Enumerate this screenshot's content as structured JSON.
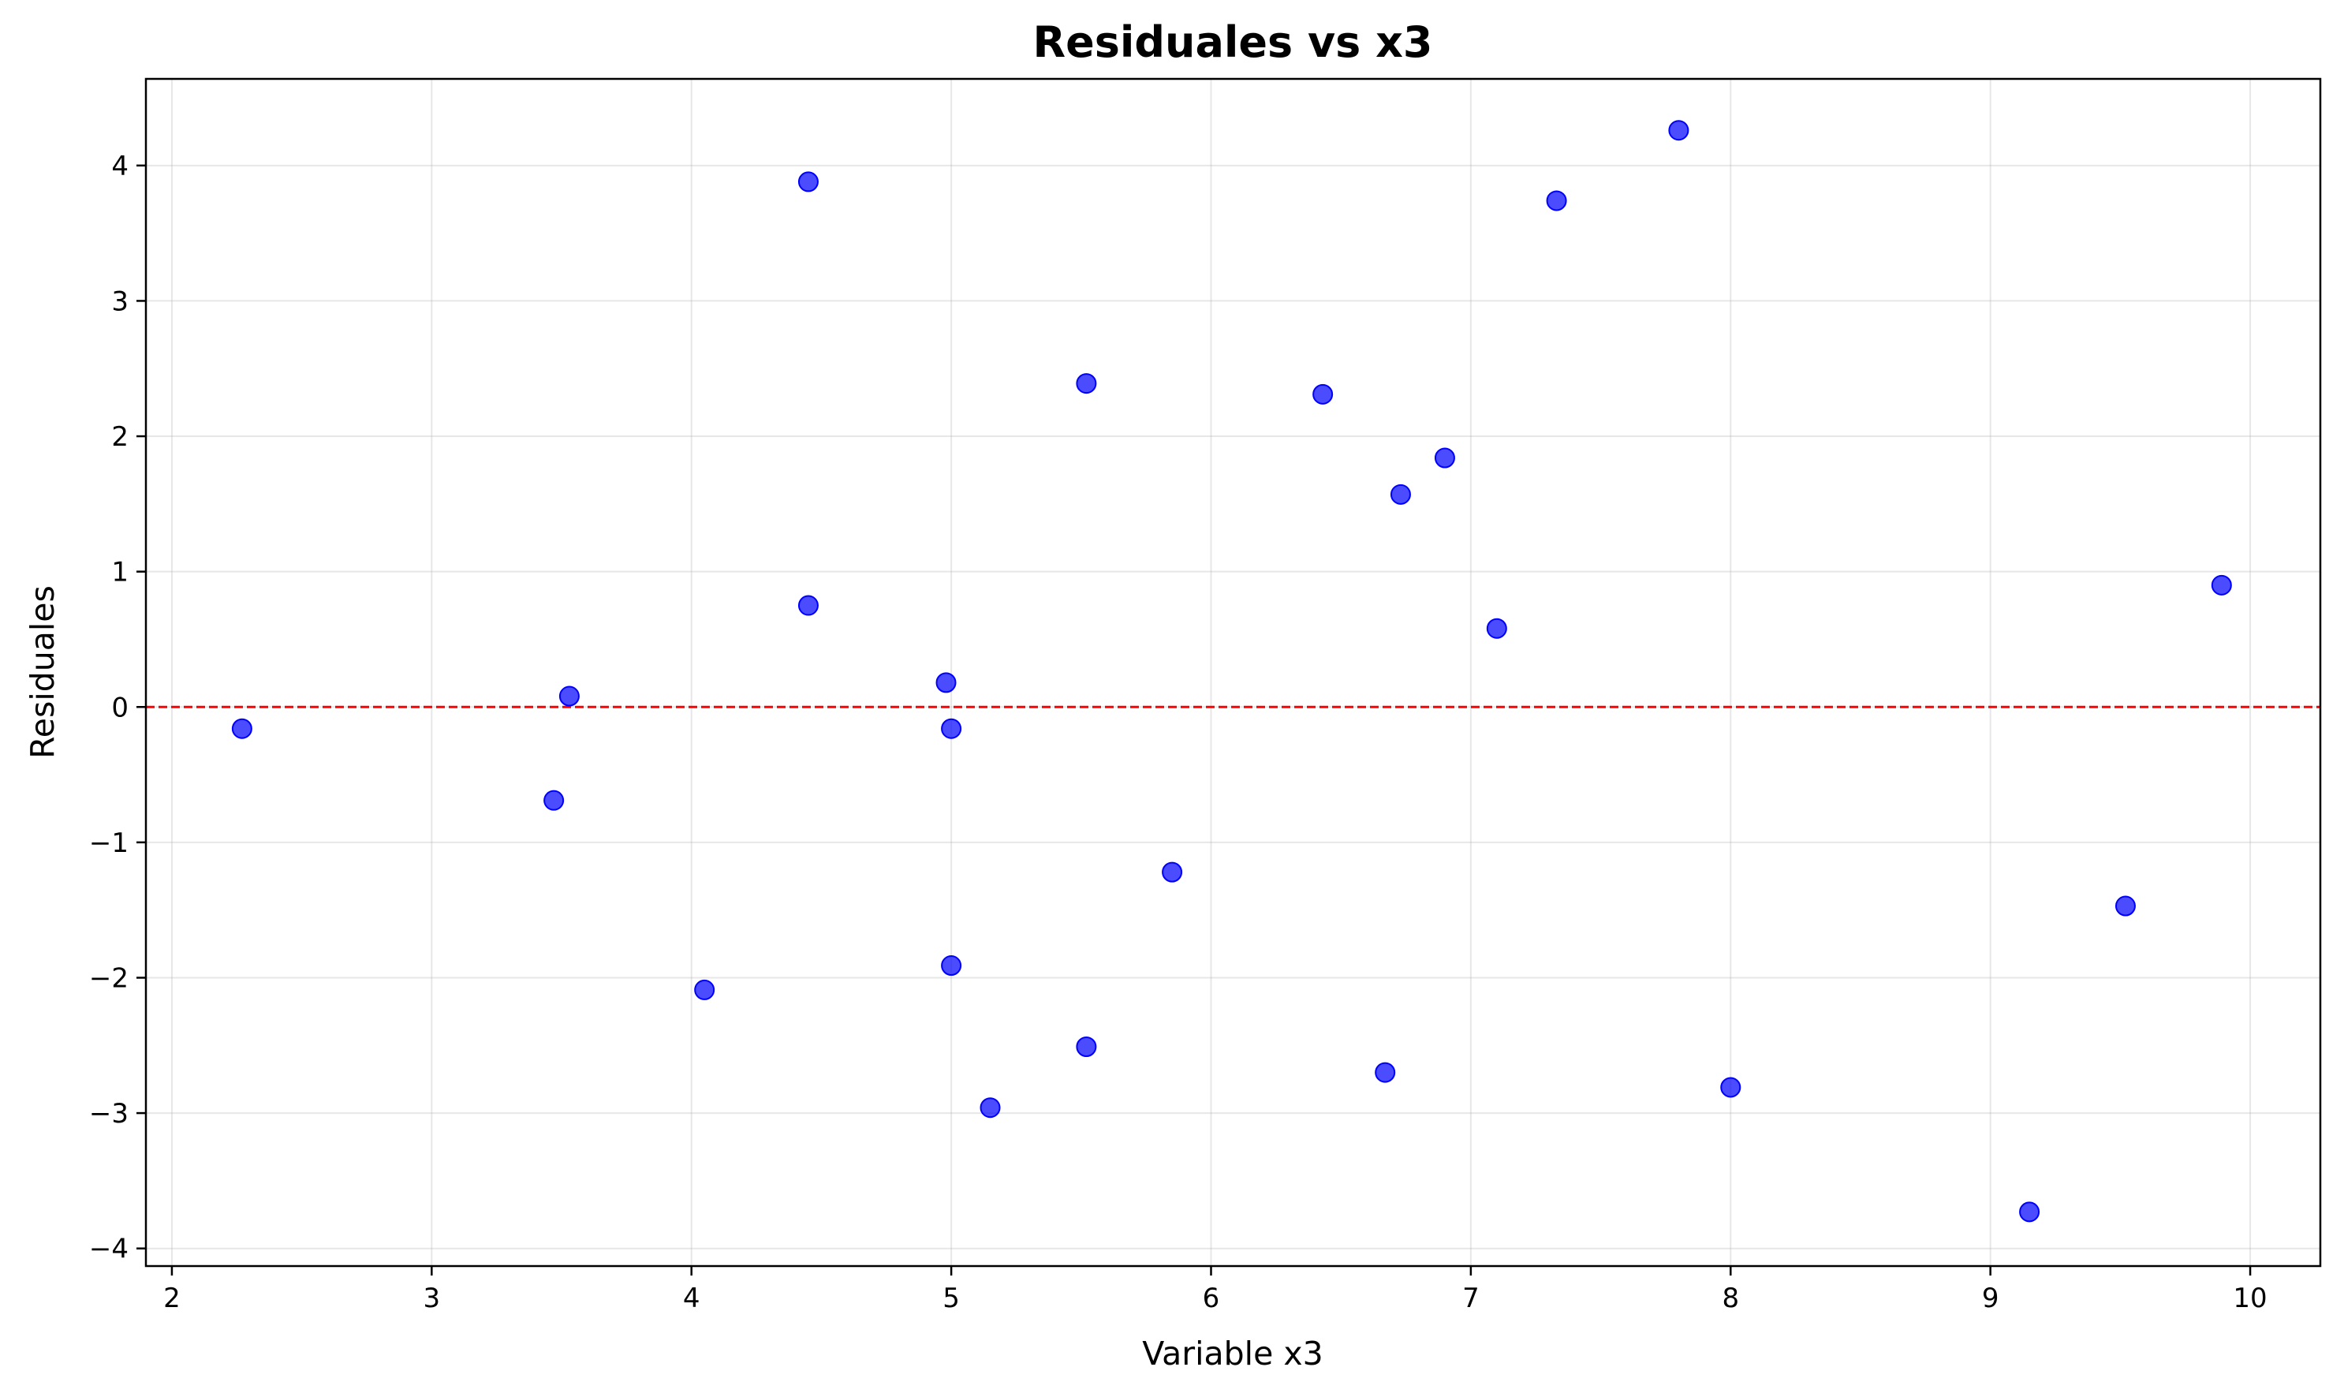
{
  "chart_data": {
    "type": "scatter",
    "title": "Residuales vs x3",
    "xlabel": "Variable x3",
    "ylabel": "Residuales",
    "xlim": [
      1.9,
      10.27
    ],
    "ylim": [
      -4.13,
      4.64
    ],
    "xticks": [
      2,
      3,
      4,
      5,
      6,
      7,
      8,
      9,
      10
    ],
    "yticks": [
      -4,
      -3,
      -2,
      -1,
      0,
      1,
      2,
      3,
      4
    ],
    "grid": true,
    "point_color": "#0000ff",
    "reference_line": {
      "y": 0,
      "color": "#ff0000",
      "style": "dashed"
    },
    "points": [
      {
        "x": 2.27,
        "y": -0.16
      },
      {
        "x": 3.47,
        "y": -0.69
      },
      {
        "x": 3.53,
        "y": 0.08
      },
      {
        "x": 4.05,
        "y": -2.09
      },
      {
        "x": 4.45,
        "y": 3.88
      },
      {
        "x": 4.45,
        "y": 0.75
      },
      {
        "x": 4.98,
        "y": 0.18
      },
      {
        "x": 5.0,
        "y": -0.16
      },
      {
        "x": 5.0,
        "y": -1.91
      },
      {
        "x": 5.15,
        "y": -2.96
      },
      {
        "x": 5.52,
        "y": 2.39
      },
      {
        "x": 5.52,
        "y": -2.51
      },
      {
        "x": 5.85,
        "y": -1.22
      },
      {
        "x": 6.43,
        "y": 2.31
      },
      {
        "x": 6.67,
        "y": -2.7
      },
      {
        "x": 6.73,
        "y": 1.57
      },
      {
        "x": 6.9,
        "y": 1.84
      },
      {
        "x": 7.1,
        "y": 0.58
      },
      {
        "x": 7.33,
        "y": 3.74
      },
      {
        "x": 7.8,
        "y": 4.26
      },
      {
        "x": 8.0,
        "y": -2.81
      },
      {
        "x": 9.15,
        "y": -3.73
      },
      {
        "x": 9.52,
        "y": -1.47
      },
      {
        "x": 9.89,
        "y": 0.9
      }
    ]
  }
}
